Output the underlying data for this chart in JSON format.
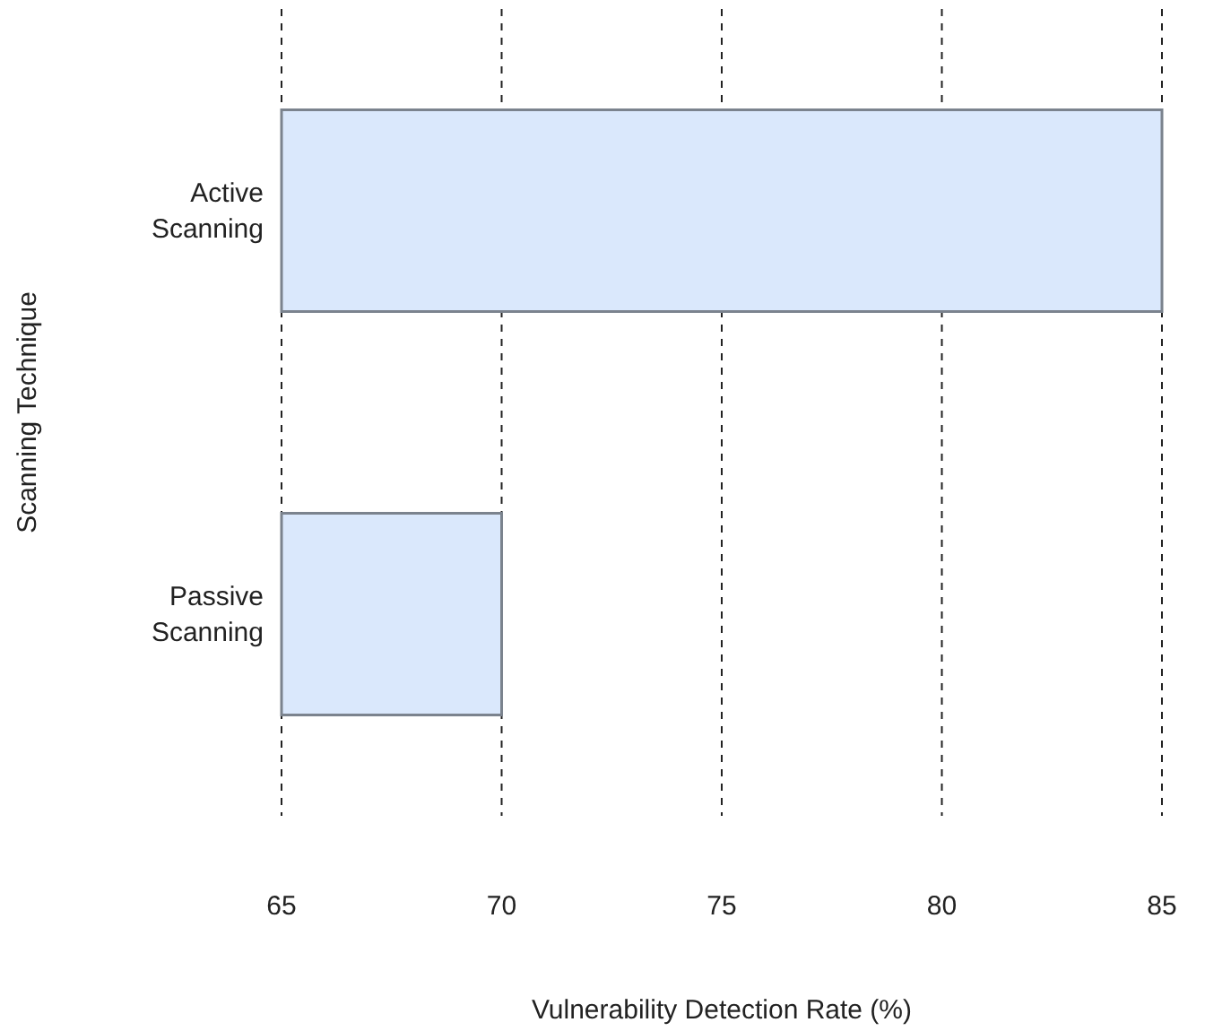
{
  "chart_data": {
    "type": "bar",
    "orientation": "horizontal",
    "xlabel": "Vulnerability Detection Rate (%)",
    "ylabel": "Scanning Technique",
    "categories": [
      "Active Scanning",
      "Passive Scanning"
    ],
    "values": [
      85,
      70
    ],
    "color": "#dae8fc",
    "xlim": [
      65,
      85
    ],
    "xticks": [
      65,
      70,
      75,
      80,
      85
    ],
    "grid": "x",
    "line_style": "dashed"
  }
}
